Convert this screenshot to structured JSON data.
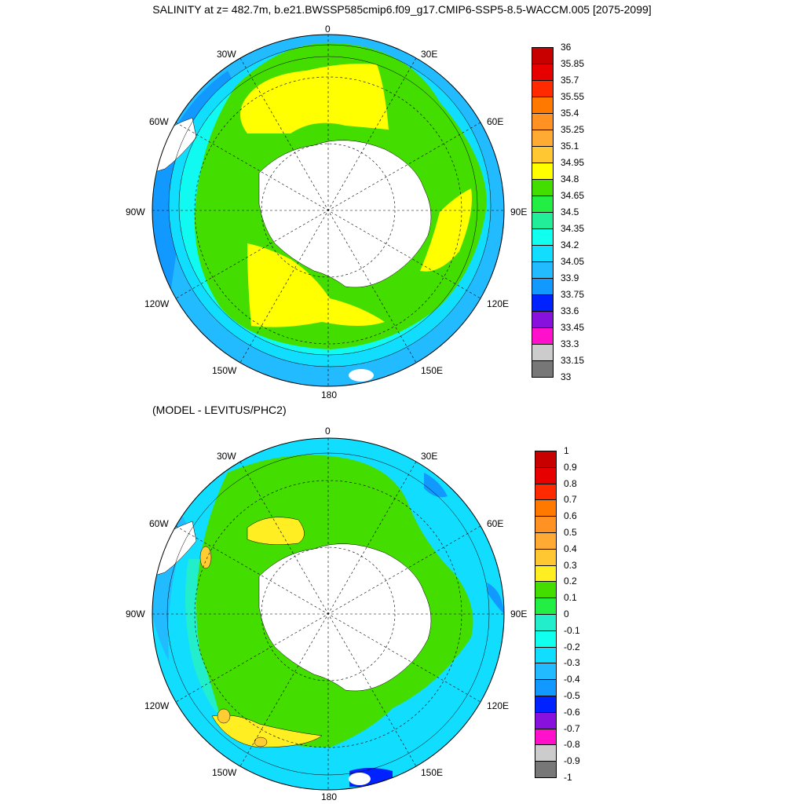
{
  "title": "SALINITY at z= 482.7m, b.e21.BWSSP585cmip6.f09_g17.CMIP6-SSP5-8.5-WACCM.005 [2075-2099]",
  "subtitle": "(MODEL - LEVITUS/PHC2)",
  "longitude_labels": [
    "0",
    "30E",
    "60E",
    "90E",
    "120E",
    "150E",
    "180",
    "150W",
    "120W",
    "90W",
    "60W",
    "30W"
  ],
  "colors": {
    "land": "#ffffff",
    "yellow": "#ffff00",
    "green": "#44dd00",
    "lime": "#22ee66",
    "aqua": "#22eecc",
    "cyan": "#11ddff",
    "blue_light": "#22bbff",
    "blue": "#1199ff",
    "orange_yellow": "#ffcc33"
  },
  "colorbar_top": {
    "labels": [
      "36",
      "35.85",
      "35.7",
      "35.55",
      "35.4",
      "35.25",
      "35.1",
      "34.95",
      "34.8",
      "34.65",
      "34.5",
      "34.35",
      "34.2",
      "34.05",
      "33.9",
      "33.75",
      "33.6",
      "33.45",
      "33.3",
      "33.15",
      "33"
    ],
    "colors": [
      "#c80000",
      "#e60000",
      "#ff2a00",
      "#ff7800",
      "#ff9222",
      "#ffaa33",
      "#ffc833",
      "#ffff00",
      "#44dd00",
      "#22ee44",
      "#22ee99",
      "#11ffee",
      "#11ddff",
      "#22bbff",
      "#1199ff",
      "#0022ff",
      "#8811dd",
      "#ff11cc",
      "#cccccc",
      "#777777"
    ]
  },
  "colorbar_bottom": {
    "labels": [
      "1",
      "0.9",
      "0.8",
      "0.7",
      "0.6",
      "0.5",
      "0.4",
      "0.3",
      "0.2",
      "0.1",
      "0",
      "-0.1",
      "-0.2",
      "-0.3",
      "-0.4",
      "-0.5",
      "-0.6",
      "-0.7",
      "-0.8",
      "-0.9",
      "-1"
    ],
    "colors": [
      "#c80000",
      "#e60000",
      "#ff2a00",
      "#ff7800",
      "#ff9222",
      "#ffaa33",
      "#ffc833",
      "#ffee22",
      "#44dd00",
      "#22ee44",
      "#22eecc",
      "#11ffee",
      "#11ddff",
      "#22bbff",
      "#1199ff",
      "#0022ff",
      "#8811dd",
      "#ff11cc",
      "#cccccc",
      "#777777"
    ]
  }
}
